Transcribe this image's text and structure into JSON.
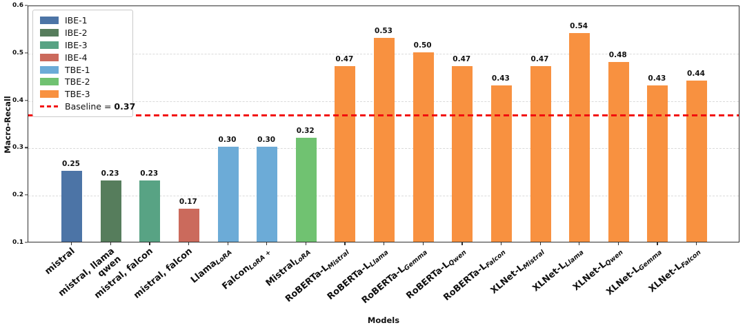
{
  "chart_data": {
    "type": "bar",
    "title": "",
    "xlabel": "Models",
    "ylabel": "Macro-Recall",
    "ylim": [
      0.1,
      0.6
    ],
    "yticks": [
      0.1,
      0.2,
      0.3,
      0.4,
      0.5,
      0.6
    ],
    "grid": "horizontal-dashed",
    "legend_position": "upper-left",
    "baseline": {
      "value": 0.37,
      "label_prefix": "Baseline = ",
      "label_value": "0.37",
      "color": "#f20d0d"
    },
    "groups": [
      {
        "name": "IBE-1",
        "color": "#4c74a6"
      },
      {
        "name": "IBE-2",
        "color": "#567d5c"
      },
      {
        "name": "IBE-3",
        "color": "#58a384"
      },
      {
        "name": "IBE-4",
        "color": "#cb6a5c"
      },
      {
        "name": "TBE-1",
        "color": "#6cabd7"
      },
      {
        "name": "TBE-2",
        "color": "#70c271"
      },
      {
        "name": "TBE-3",
        "color": "#f89140"
      }
    ],
    "bars": [
      {
        "main": "mistral",
        "line2": "",
        "sub": "",
        "value": 0.25,
        "group": "IBE-1"
      },
      {
        "main": "mistral, llama",
        "line2": "qwen",
        "sub": "",
        "value": 0.23,
        "group": "IBE-2"
      },
      {
        "main": "mistral, falcon",
        "line2": "",
        "sub": "",
        "value": 0.23,
        "group": "IBE-3"
      },
      {
        "main": "mistral, falcon",
        "line2": "",
        "sub": "",
        "value": 0.17,
        "group": "IBE-4"
      },
      {
        "main": "Llama",
        "line2": "",
        "sub": "LoRA",
        "value": 0.3,
        "group": "TBE-1"
      },
      {
        "main": "Falcon",
        "line2": "",
        "sub": "LoRA +",
        "value": 0.3,
        "group": "TBE-1"
      },
      {
        "main": "Mistral",
        "line2": "",
        "sub": "LoRA",
        "value": 0.32,
        "group": "TBE-2"
      },
      {
        "main": "RoBERTa-L",
        "line2": "",
        "sub": "Mistral",
        "value": 0.47,
        "group": "TBE-3"
      },
      {
        "main": "RoBERTa-L",
        "line2": "",
        "sub": "Llama",
        "value": 0.53,
        "group": "TBE-3"
      },
      {
        "main": "RoBERTa-L",
        "line2": "",
        "sub": "Gemma",
        "value": 0.5,
        "group": "TBE-3"
      },
      {
        "main": "RoBERTa-L",
        "line2": "",
        "sub": "Qwen",
        "value": 0.47,
        "group": "TBE-3"
      },
      {
        "main": "RoBERTa-L",
        "line2": "",
        "sub": "Falcon",
        "value": 0.43,
        "group": "TBE-3"
      },
      {
        "main": "XLNet-L",
        "line2": "",
        "sub": "Mistral",
        "value": 0.47,
        "group": "TBE-3"
      },
      {
        "main": "XLNet-L",
        "line2": "",
        "sub": "Llama",
        "value": 0.54,
        "group": "TBE-3"
      },
      {
        "main": "XLNet-L",
        "line2": "",
        "sub": "Qwen",
        "value": 0.48,
        "group": "TBE-3"
      },
      {
        "main": "XLNet-L",
        "line2": "",
        "sub": "Gemma",
        "value": 0.43,
        "group": "TBE-3"
      },
      {
        "main": "XLNet-L",
        "line2": "",
        "sub": "Falcon",
        "value": 0.44,
        "group": "TBE-3"
      }
    ]
  }
}
